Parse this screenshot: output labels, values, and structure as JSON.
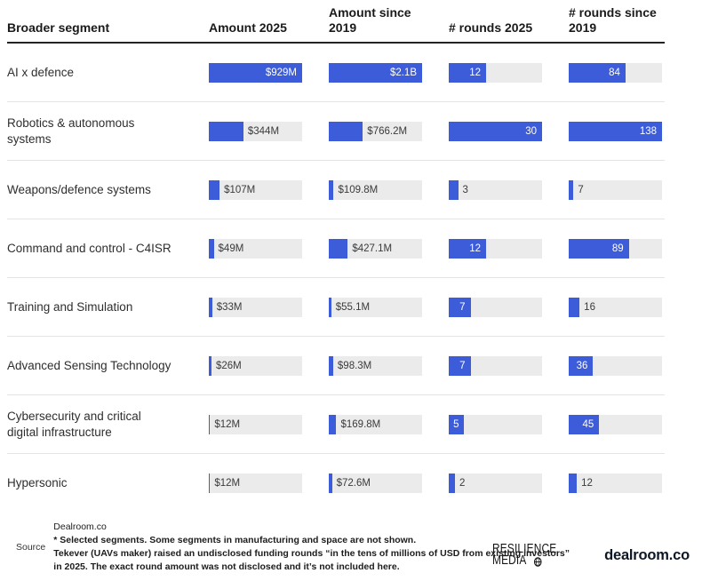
{
  "chart_data": {
    "type": "table",
    "title": "",
    "columns": [
      "Broader segment",
      "Amount 2025",
      "Amount since 2019",
      "# rounds 2025",
      "# rounds since 2019"
    ],
    "column_max": [
      929,
      2100,
      30,
      138
    ],
    "bar_color": "#3d5cd9",
    "track_color": "#ebebeb",
    "rows": [
      {
        "segment": "AI x defence",
        "cells": [
          {
            "value": 929,
            "label": "$929M"
          },
          {
            "value": 2100,
            "label": "$2.1B"
          },
          {
            "value": 12,
            "label": "12"
          },
          {
            "value": 84,
            "label": "84"
          }
        ]
      },
      {
        "segment": "Robotics & autonomous systems",
        "cells": [
          {
            "value": 344,
            "label": "$344M"
          },
          {
            "value": 766.2,
            "label": "$766.2M"
          },
          {
            "value": 30,
            "label": "30"
          },
          {
            "value": 138,
            "label": "138"
          }
        ]
      },
      {
        "segment": "Weapons/defence systems",
        "cells": [
          {
            "value": 107,
            "label": "$107M"
          },
          {
            "value": 109.8,
            "label": "$109.8M"
          },
          {
            "value": 3,
            "label": "3"
          },
          {
            "value": 7,
            "label": "7"
          }
        ]
      },
      {
        "segment": "Command and control - C4ISR",
        "cells": [
          {
            "value": 49,
            "label": "$49M"
          },
          {
            "value": 427.1,
            "label": "$427.1M"
          },
          {
            "value": 12,
            "label": "12"
          },
          {
            "value": 89,
            "label": "89"
          }
        ]
      },
      {
        "segment": "Training and Simulation",
        "cells": [
          {
            "value": 33,
            "label": "$33M"
          },
          {
            "value": 55.1,
            "label": "$55.1M"
          },
          {
            "value": 7,
            "label": "7"
          },
          {
            "value": 16,
            "label": "16"
          }
        ]
      },
      {
        "segment": "Advanced Sensing Technology",
        "cells": [
          {
            "value": 26,
            "label": "$26M"
          },
          {
            "value": 98.3,
            "label": "$98.3M"
          },
          {
            "value": 7,
            "label": "7"
          },
          {
            "value": 36,
            "label": "36"
          }
        ]
      },
      {
        "segment": "Cybersecurity and critical digital infrastructure",
        "cells": [
          {
            "value": 12,
            "label": "$12M"
          },
          {
            "value": 169.8,
            "label": "$169.8M"
          },
          {
            "value": 5,
            "label": "5"
          },
          {
            "value": 45,
            "label": "45"
          }
        ]
      },
      {
        "segment": "Hypersonic",
        "cells": [
          {
            "value": 12,
            "label": "$12M"
          },
          {
            "value": 72.6,
            "label": "$72.6M"
          },
          {
            "value": 2,
            "label": "2"
          },
          {
            "value": 12,
            "label": "12"
          }
        ]
      }
    ]
  },
  "footer": {
    "source_label": "Source",
    "notes": [
      "Dealroom.co",
      "* Selected segments. Some segments in manufacturing and space are not shown.",
      "Tekever (UAVs maker) raised an undisclosed funding rounds “in the tens of millions of USD from existing investors”",
      "in 2025. The exact round amount was not disclosed and it’s not included here."
    ],
    "logos": {
      "resilience_line1": "RESILIENCE",
      "resilience_line2": "MEDIA",
      "dealroom": "dealroom.co"
    }
  }
}
